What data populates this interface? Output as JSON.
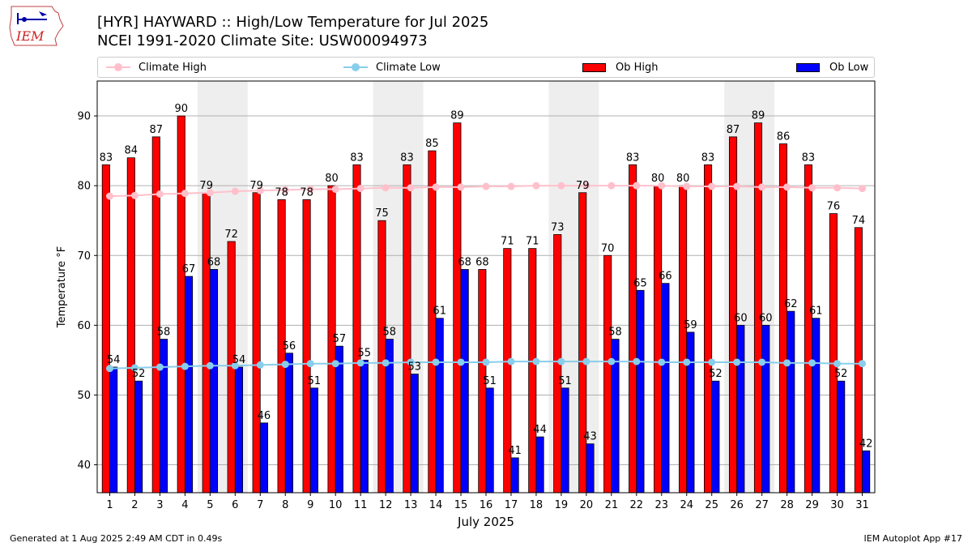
{
  "header": {
    "title_line1": "[HYR] HAYWARD :: High/Low Temperature for Jul 2025",
    "title_line2": "NCEI 1991-2020 Climate Site: USW00094973",
    "logo_text": "IEM"
  },
  "footer": {
    "left": "Generated at 1 Aug 2025 2:49 AM CDT in 0.49s",
    "right": "IEM Autoplot App #17"
  },
  "legend": {
    "climate_high": "Climate High",
    "climate_low": "Climate Low",
    "ob_high": "Ob High",
    "ob_low": "Ob Low"
  },
  "colors": {
    "ob_high": "#ff0000",
    "ob_low": "#0000ff",
    "climate_high": "#ffc0cb",
    "climate_low": "#87ceeb",
    "weekend_band": "#eeeeee",
    "grid": "#b0b0b0"
  },
  "chart_data": {
    "type": "bar",
    "xlabel": "July 2025",
    "ylabel": "Temperature °F",
    "ylim": [
      36,
      95
    ],
    "yticks": [
      40,
      50,
      60,
      70,
      80,
      90
    ],
    "grid": "horizontal",
    "legend_position": "top",
    "weekend_days": [
      5,
      6,
      12,
      13,
      19,
      20,
      26,
      27
    ],
    "categories": [
      "1",
      "2",
      "3",
      "4",
      "5",
      "6",
      "7",
      "8",
      "9",
      "10",
      "11",
      "12",
      "13",
      "14",
      "15",
      "16",
      "17",
      "18",
      "19",
      "20",
      "21",
      "22",
      "23",
      "24",
      "25",
      "26",
      "27",
      "28",
      "29",
      "30",
      "31"
    ],
    "series": [
      {
        "name": "Ob High",
        "kind": "bar",
        "values": [
          83,
          84,
          87,
          90,
          79,
          72,
          79,
          78,
          78,
          80,
          83,
          75,
          83,
          85,
          89,
          68,
          71,
          71,
          73,
          79,
          70,
          83,
          80,
          80,
          83,
          87,
          89,
          86,
          83,
          76,
          74
        ]
      },
      {
        "name": "Ob Low",
        "kind": "bar",
        "values": [
          54,
          52,
          58,
          67,
          68,
          54,
          46,
          56,
          51,
          57,
          55,
          58,
          53,
          61,
          68,
          51,
          41,
          44,
          51,
          43,
          58,
          65,
          66,
          59,
          52,
          60,
          60,
          62,
          61,
          52,
          42
        ]
      },
      {
        "name": "Climate High",
        "kind": "line",
        "values": [
          78.5,
          78.6,
          78.8,
          78.9,
          79.0,
          79.2,
          79.3,
          79.4,
          79.5,
          79.5,
          79.6,
          79.7,
          79.7,
          79.8,
          79.8,
          79.9,
          79.9,
          80.0,
          80.0,
          80.0,
          80.0,
          80.0,
          80.0,
          79.9,
          79.9,
          79.9,
          79.8,
          79.8,
          79.7,
          79.7,
          79.6
        ]
      },
      {
        "name": "Climate Low",
        "kind": "line",
        "values": [
          53.8,
          53.9,
          54.0,
          54.1,
          54.2,
          54.2,
          54.3,
          54.4,
          54.5,
          54.5,
          54.6,
          54.6,
          54.7,
          54.7,
          54.7,
          54.7,
          54.8,
          54.8,
          54.8,
          54.8,
          54.8,
          54.8,
          54.7,
          54.7,
          54.7,
          54.7,
          54.7,
          54.6,
          54.6,
          54.5,
          54.5
        ]
      }
    ]
  }
}
